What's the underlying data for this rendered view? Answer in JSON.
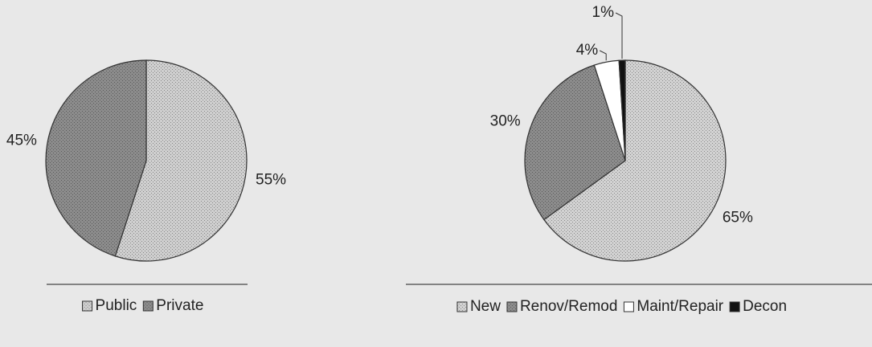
{
  "chart_data": [
    {
      "type": "pie",
      "categories": [
        "Public",
        "Private"
      ],
      "values": [
        55,
        45
      ],
      "value_labels": [
        "55%",
        "45%"
      ],
      "colors": [
        "#cfcfcf",
        "#8c8c8c"
      ]
    },
    {
      "type": "pie",
      "categories": [
        "New",
        "Renov/Remod",
        "Maint/Repair",
        "Decon"
      ],
      "values": [
        65,
        30,
        4,
        1
      ],
      "value_labels": [
        "65%",
        "30%",
        "4%",
        "1%"
      ],
      "colors": [
        "#d2d2d2",
        "#8c8c8c",
        "#ffffff",
        "#111111"
      ]
    }
  ]
}
